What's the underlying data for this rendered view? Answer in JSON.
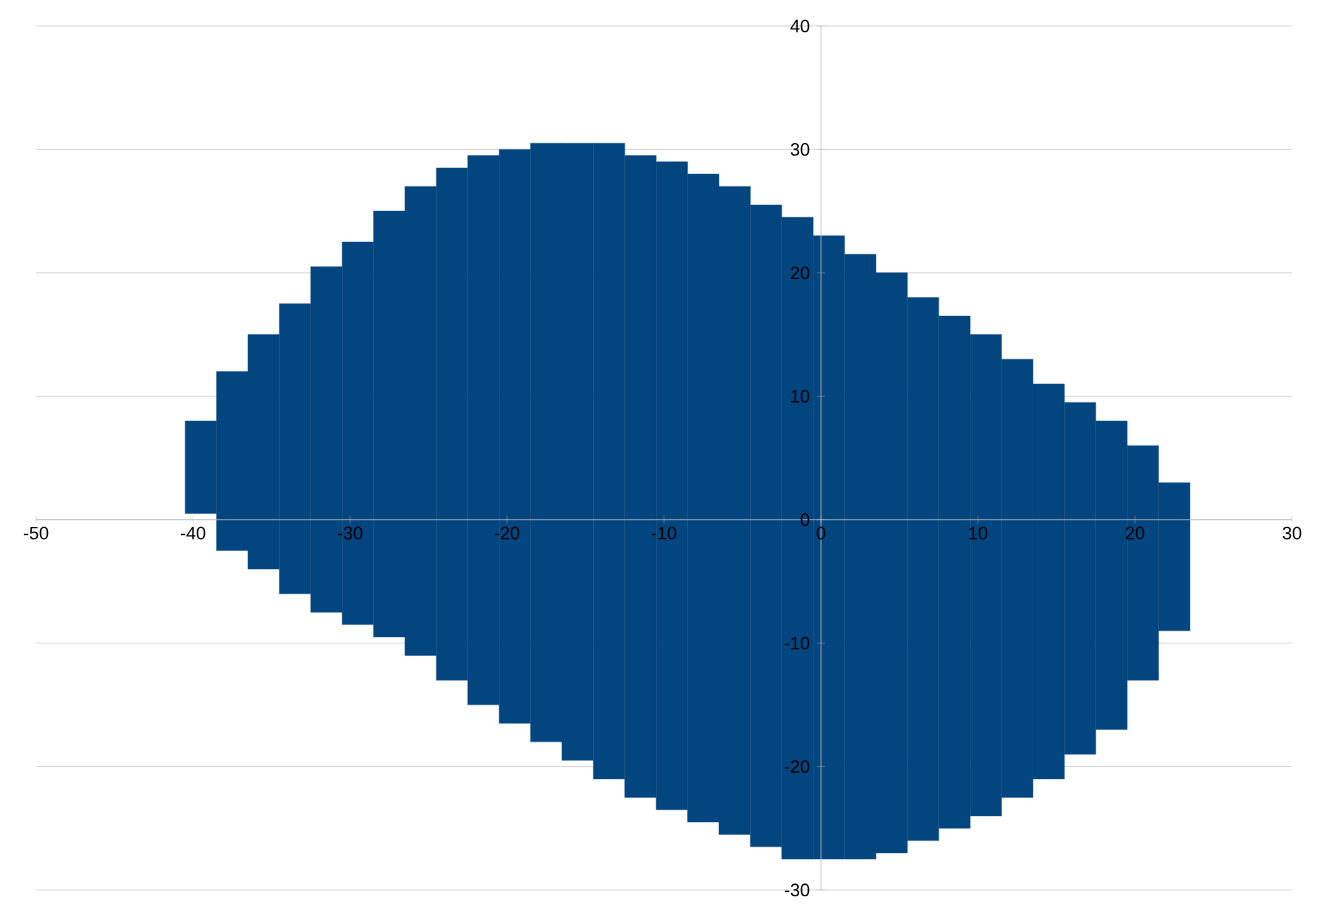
{
  "chart_data": {
    "type": "bar",
    "color": "#02457f",
    "x": [
      -39.5,
      -37.5,
      -35.5,
      -33.5,
      -31.5,
      -29.5,
      -27.5,
      -25.5,
      -23.5,
      -21.5,
      -19.5,
      -17.5,
      -15.5,
      -13.5,
      -11.5,
      -9.5,
      -7.5,
      -5.5,
      -3.5,
      -1.5,
      0.5,
      2.5,
      4.5,
      6.5,
      8.5,
      10.5,
      12.5,
      14.5,
      16.5,
      18.5,
      20.5,
      22.5
    ],
    "base": [
      0.5,
      -2.5,
      -4,
      -6,
      -7.5,
      -8.5,
      -9.5,
      -11,
      -13,
      -15,
      -16.5,
      -18,
      -19.5,
      -21,
      -22.5,
      -23.5,
      -24.5,
      -25.5,
      -26.5,
      -27.5,
      -27.5,
      -27.5,
      -27,
      -26,
      -25,
      -24,
      -22.5,
      -21,
      -19,
      -17,
      -13,
      -9
    ],
    "values": [
      7.5,
      14.5,
      19,
      23.5,
      28,
      31,
      34.5,
      38,
      41.5,
      44.5,
      46.5,
      48.5,
      50,
      51.5,
      52,
      52.5,
      52.5,
      52.5,
      52,
      52,
      50.5,
      49,
      47,
      44,
      41.5,
      39,
      35.5,
      32,
      28.5,
      25,
      19,
      12
    ],
    "xlim": [
      -50,
      30
    ],
    "ylim": [
      -30,
      40
    ],
    "xticks": [
      -50,
      -40,
      -30,
      -20,
      -10,
      0,
      10,
      20,
      30
    ],
    "yticks": [
      -30,
      -20,
      -10,
      0,
      10,
      20,
      30,
      40
    ],
    "grid": "y"
  }
}
